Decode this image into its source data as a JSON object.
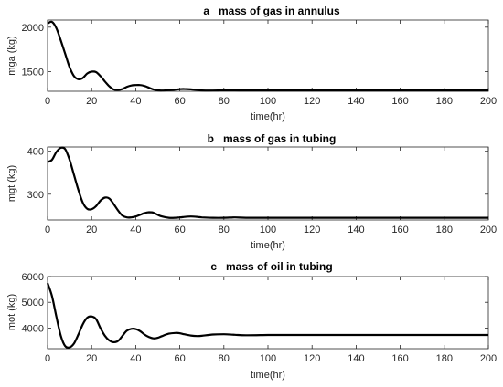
{
  "chart_data": [
    {
      "type": "line",
      "title": "a   mass of gas in annulus",
      "xlabel": "time(hr)",
      "ylabel": "mga (kg)",
      "xlim": [
        0,
        200
      ],
      "ylim": [
        1280,
        2080
      ],
      "xticks": [
        0,
        20,
        40,
        60,
        80,
        100,
        120,
        140,
        160,
        180,
        200
      ],
      "yticks": [
        1500,
        2000
      ],
      "series": [
        {
          "x": [
            0,
            2,
            4,
            6,
            8,
            10,
            12,
            14,
            16,
            18,
            20,
            22,
            24,
            26,
            28,
            30,
            32,
            34,
            36,
            38,
            40,
            42,
            44,
            46,
            48,
            50,
            52,
            55,
            58,
            60,
            62,
            65,
            68,
            70,
            75,
            80,
            85,
            90,
            100,
            110,
            120,
            140,
            160,
            180,
            200
          ],
          "y": [
            2040,
            2060,
            1990,
            1850,
            1700,
            1550,
            1450,
            1415,
            1430,
            1480,
            1500,
            1495,
            1450,
            1390,
            1335,
            1300,
            1295,
            1305,
            1330,
            1345,
            1350,
            1350,
            1340,
            1320,
            1300,
            1290,
            1288,
            1292,
            1298,
            1304,
            1306,
            1302,
            1294,
            1289,
            1288,
            1291,
            1290,
            1289,
            1289,
            1289,
            1289,
            1289,
            1289,
            1289,
            1289
          ]
        }
      ]
    },
    {
      "type": "line",
      "title": "b   mass of gas in tubing",
      "xlabel": "time(hr)",
      "ylabel": "mgt (kg)",
      "xlim": [
        0,
        200
      ],
      "ylim": [
        240,
        410
      ],
      "xticks": [
        0,
        20,
        40,
        60,
        80,
        100,
        120,
        140,
        160,
        180,
        200
      ],
      "yticks": [
        300,
        400
      ],
      "series": [
        {
          "x": [
            0,
            2,
            4,
            6,
            8,
            10,
            12,
            14,
            16,
            18,
            20,
            22,
            24,
            26,
            28,
            30,
            32,
            34,
            36,
            38,
            40,
            42,
            44,
            46,
            48,
            50,
            52,
            55,
            58,
            60,
            62,
            65,
            68,
            70,
            75,
            80,
            85,
            90,
            100,
            110,
            120,
            140,
            160,
            180,
            200
          ],
          "y": [
            375,
            380,
            398,
            408,
            405,
            380,
            345,
            310,
            280,
            266,
            265,
            272,
            285,
            292,
            290,
            277,
            262,
            250,
            246,
            246,
            248,
            252,
            256,
            258,
            257,
            252,
            248,
            245,
            245,
            246,
            247,
            248,
            247,
            246,
            245,
            245,
            246,
            245,
            245,
            245,
            245,
            245,
            245,
            245,
            245
          ]
        }
      ]
    },
    {
      "type": "line",
      "title": "c   mass of oil in tubing",
      "xlabel": "time(hr)",
      "ylabel": "mot (kg)",
      "xlim": [
        0,
        200
      ],
      "ylim": [
        3200,
        6000
      ],
      "xticks": [
        0,
        20,
        40,
        60,
        80,
        100,
        120,
        140,
        160,
        180,
        200
      ],
      "yticks": [
        4000,
        5000,
        6000
      ],
      "series": [
        {
          "x": [
            0,
            2,
            4,
            6,
            8,
            10,
            12,
            14,
            16,
            18,
            20,
            22,
            24,
            26,
            28,
            30,
            32,
            34,
            36,
            38,
            40,
            42,
            44,
            46,
            48,
            50,
            52,
            55,
            58,
            60,
            62,
            65,
            68,
            70,
            75,
            80,
            85,
            90,
            100,
            110,
            120,
            140,
            160,
            180,
            200
          ],
          "y": [
            5750,
            5250,
            4450,
            3700,
            3300,
            3250,
            3400,
            3750,
            4150,
            4400,
            4450,
            4350,
            4000,
            3700,
            3520,
            3450,
            3500,
            3700,
            3900,
            3970,
            3960,
            3880,
            3750,
            3650,
            3600,
            3620,
            3690,
            3780,
            3810,
            3800,
            3760,
            3710,
            3690,
            3700,
            3750,
            3760,
            3740,
            3720,
            3730,
            3730,
            3730,
            3730,
            3730,
            3730,
            3730
          ]
        }
      ]
    }
  ]
}
